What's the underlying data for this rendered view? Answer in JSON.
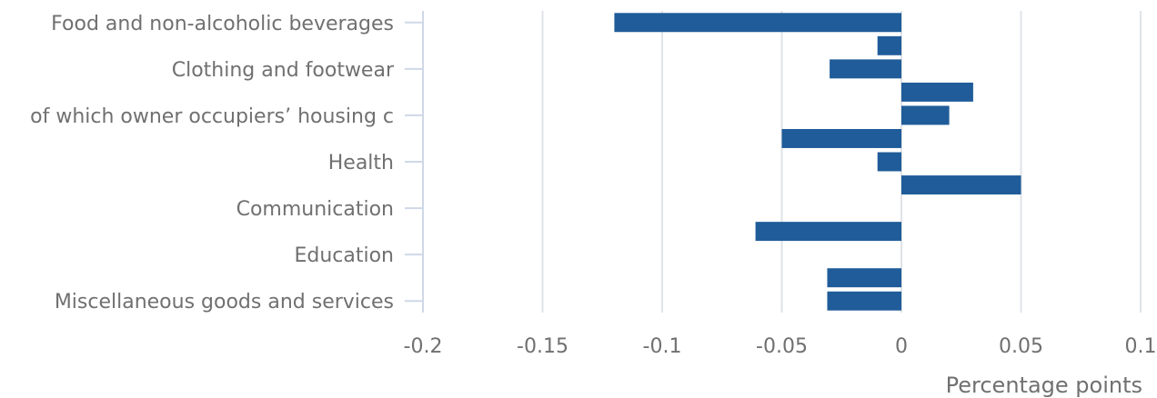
{
  "chart_data": {
    "type": "bar",
    "orientation": "horizontal",
    "title": "",
    "xlabel": "Percentage points",
    "ylabel": "",
    "xlim": [
      -0.2,
      0.1
    ],
    "xticks": [
      -0.2,
      -0.15,
      -0.1,
      -0.05,
      0,
      0.05,
      0.1
    ],
    "xtick_labels": [
      "-0.2",
      "-0.15",
      "-0.1",
      "-0.05",
      "0",
      "0.05",
      "0.1"
    ],
    "grid": "vertical",
    "bar_color": "#1f5c99",
    "categories": [
      "Food and non-alcoholic beverages",
      "",
      "Clothing and footwear",
      "",
      "of which owner occupiers’ housing c",
      "",
      "Health",
      "",
      "Communication",
      "",
      "Education",
      "",
      "Miscellaneous goods and services"
    ],
    "values": [
      -0.12,
      -0.01,
      -0.03,
      0.03,
      0.02,
      -0.05,
      -0.01,
      0.05,
      0,
      -0.061,
      0,
      -0.031,
      -0.031
    ]
  }
}
